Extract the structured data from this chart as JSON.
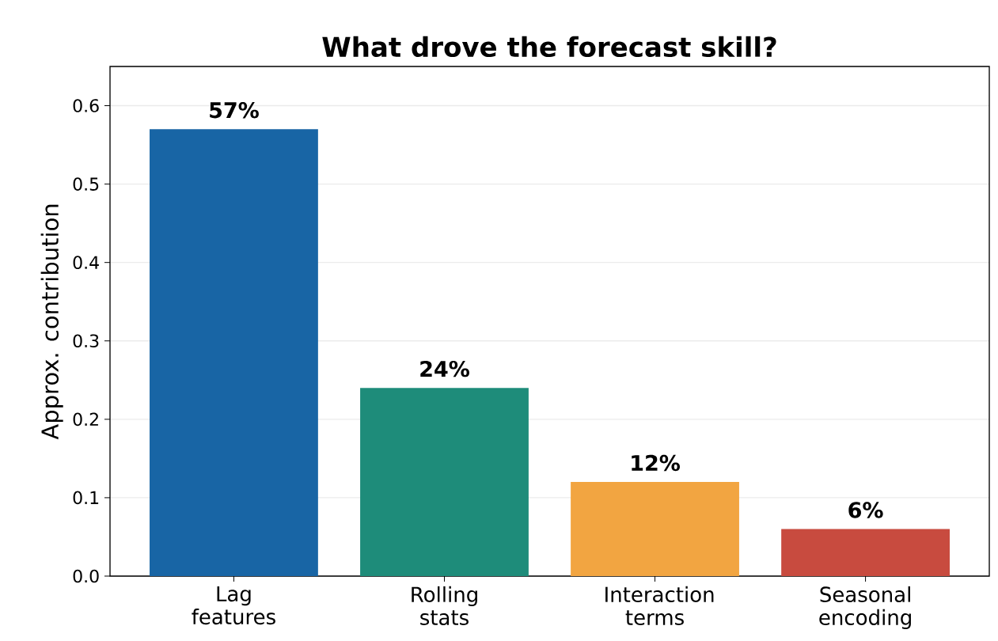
{
  "chart_data": {
    "type": "bar",
    "title": "What drove the forecast skill?",
    "ylabel": "Approx. contribution",
    "categories": [
      "Lag features",
      "Rolling stats",
      "Interaction terms",
      "Seasonal encoding"
    ],
    "values": [
      0.57,
      0.24,
      0.12,
      0.06
    ],
    "colors": [
      "#1865a5",
      "#1e8c7a",
      "#f2a541",
      "#c84b3f"
    ],
    "value_labels": [
      "57%",
      "24%",
      "12%",
      "6%"
    ],
    "ylim": [
      0,
      0.65
    ],
    "yticks": [
      {
        "value": 0,
        "label": "0.0"
      },
      0.1,
      0.2,
      0.3,
      0.4,
      0.5,
      0.6
    ],
    "grid": "y"
  }
}
